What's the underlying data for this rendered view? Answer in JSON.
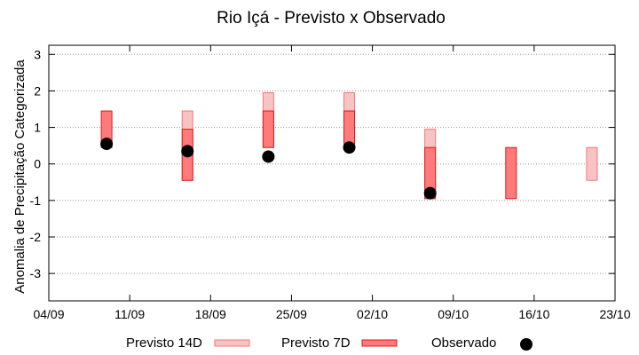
{
  "chart_data": {
    "type": "range",
    "title": "Rio Içá - Previsto x Observado",
    "xlabel": "",
    "ylabel": "Anomalia de Precipitação Categorizada",
    "ylim": [
      -3.75,
      3.25
    ],
    "yticks": [
      -3,
      -2,
      -1,
      0,
      1,
      2,
      3
    ],
    "xticks": [
      "04/09",
      "11/09",
      "18/09",
      "25/09",
      "02/10",
      "09/10",
      "16/10",
      "23/10"
    ],
    "grid": "horizontal-dotted",
    "legend_position": "bottom",
    "colors": {
      "previsto_14d_fill": "#f8c3c3",
      "previsto_14d_stroke": "#f07878",
      "previsto_7d_fill": "#ff7a7a",
      "previsto_7d_stroke": "#d81a1a",
      "observado": "#000000",
      "grid": "#999999"
    },
    "series": [
      {
        "name": "Previsto 14D",
        "kind": "range",
        "points": [
          {
            "x": "16/09",
            "low": -0.45,
            "high": 1.45
          },
          {
            "x": "23/09",
            "low": 0.45,
            "high": 1.95
          },
          {
            "x": "30/09",
            "low": 0.45,
            "high": 1.95
          },
          {
            "x": "07/10",
            "low": -0.95,
            "high": 0.95
          },
          {
            "x": "21/10",
            "low": -0.45,
            "high": 0.45
          }
        ]
      },
      {
        "name": "Previsto 7D",
        "kind": "range",
        "points": [
          {
            "x": "09/09",
            "low": 0.45,
            "high": 1.45
          },
          {
            "x": "16/09",
            "low": -0.45,
            "high": 0.95
          },
          {
            "x": "23/09",
            "low": 0.45,
            "high": 1.45
          },
          {
            "x": "30/09",
            "low": 0.45,
            "high": 1.45
          },
          {
            "x": "07/10",
            "low": -0.95,
            "high": 0.45
          },
          {
            "x": "14/10",
            "low": -0.95,
            "high": 0.45
          }
        ]
      },
      {
        "name": "Observado",
        "kind": "point",
        "points": [
          {
            "x": "09/09",
            "y": 0.55
          },
          {
            "x": "16/09",
            "y": 0.35
          },
          {
            "x": "23/09",
            "y": 0.2
          },
          {
            "x": "30/09",
            "y": 0.45
          },
          {
            "x": "07/10",
            "y": -0.8
          }
        ]
      }
    ]
  }
}
